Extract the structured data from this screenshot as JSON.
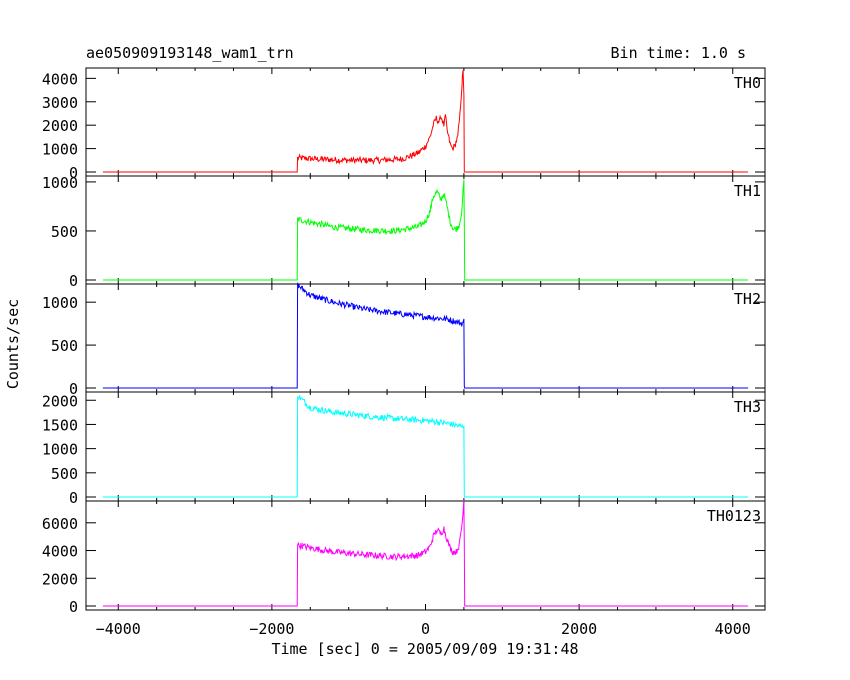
{
  "header": {
    "title": "ae050909193148_wam1_trn",
    "bin_time": "Bin time: 1.0 s"
  },
  "chart_data": {
    "type": "line",
    "title": "ae050909193148_wam1_trn",
    "xlabel": "Time [sec] 0 = 2005/09/09 19:31:48",
    "ylabel": "Counts/sec",
    "xlim": [
      -4420,
      4420
    ],
    "x_ticks": [
      -4000,
      -2000,
      0,
      2000,
      4000
    ],
    "x_tick_labels": [
      "−4000",
      "−2000",
      "0",
      "2000",
      "4000"
    ],
    "grid": false,
    "panels": [
      {
        "name": "TH0",
        "color": "#ff0000",
        "ylim": [
          0,
          4400
        ],
        "y_ticks": [
          0,
          1000,
          2000,
          3000,
          4000
        ],
        "x": [
          -4200,
          -1670,
          -1665,
          -1400,
          -1000,
          -600,
          -300,
          -100,
          0,
          60,
          100,
          140,
          180,
          200,
          240,
          260,
          280,
          320,
          350,
          380,
          420,
          450,
          470,
          480,
          490,
          500,
          505,
          510,
          4200
        ],
        "values": [
          0,
          0,
          600,
          550,
          500,
          500,
          560,
          800,
          1100,
          1500,
          2000,
          2300,
          2100,
          2400,
          2000,
          2400,
          1800,
          1200,
          1000,
          1100,
          1500,
          2500,
          3500,
          4000,
          4400,
          3200,
          20,
          0,
          0
        ]
      },
      {
        "name": "TH1",
        "color": "#00ff00",
        "ylim": [
          0,
          1050
        ],
        "y_ticks": [
          0,
          500,
          1000
        ],
        "x": [
          -4200,
          -1670,
          -1665,
          -1500,
          -1200,
          -800,
          -400,
          -100,
          0,
          60,
          100,
          150,
          200,
          240,
          280,
          320,
          360,
          400,
          440,
          470,
          490,
          500,
          505,
          510,
          4200
        ],
        "values": [
          0,
          0,
          620,
          590,
          540,
          510,
          500,
          540,
          600,
          700,
          850,
          900,
          820,
          880,
          750,
          600,
          520,
          520,
          560,
          700,
          900,
          1000,
          600,
          0,
          0
        ]
      },
      {
        "name": "TH2",
        "color": "#0000ff",
        "ylim": [
          0,
          1200
        ],
        "y_ticks": [
          0,
          500,
          1000
        ],
        "x": [
          -4200,
          -1670,
          -1665,
          -1500,
          -1200,
          -800,
          -400,
          0,
          300,
          480,
          500,
          505,
          510,
          4200
        ],
        "values": [
          0,
          0,
          1200,
          1080,
          1000,
          920,
          870,
          830,
          800,
          750,
          780,
          20,
          0,
          0
        ]
      },
      {
        "name": "TH3",
        "color": "#00ffff",
        "ylim": [
          0,
          2150
        ],
        "y_ticks": [
          0,
          500,
          1000,
          1500,
          2000
        ],
        "x": [
          -4200,
          -1670,
          -1665,
          -1500,
          -1200,
          -800,
          -400,
          0,
          300,
          480,
          500,
          505,
          510,
          4200
        ],
        "values": [
          0,
          0,
          2100,
          1850,
          1750,
          1680,
          1620,
          1580,
          1520,
          1450,
          1480,
          20,
          0,
          0
        ]
      },
      {
        "name": "TH0123",
        "color": "#ff00ff",
        "ylim": [
          0,
          7500
        ],
        "y_ticks": [
          0,
          2000,
          4000,
          6000
        ],
        "x": [
          -4200,
          -1670,
          -1665,
          -1500,
          -1200,
          -800,
          -400,
          -100,
          0,
          60,
          100,
          150,
          200,
          240,
          280,
          320,
          360,
          400,
          440,
          470,
          490,
          500,
          505,
          510,
          4200
        ],
        "values": [
          0,
          0,
          4400,
          4200,
          3900,
          3700,
          3550,
          3650,
          3900,
          4300,
          5000,
          5500,
          5200,
          5600,
          4800,
          4200,
          3900,
          3900,
          4400,
          5600,
          6800,
          7600,
          4500,
          0,
          0
        ]
      }
    ]
  }
}
